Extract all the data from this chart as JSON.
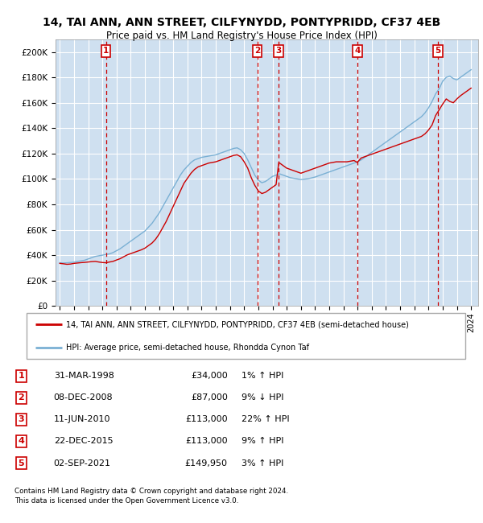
{
  "title1": "14, TAI ANN, ANN STREET, CILFYNYDD, PONTYPRIDD, CF37 4EB",
  "title2": "Price paid vs. HM Land Registry's House Price Index (HPI)",
  "ylabel_ticks": [
    0,
    20000,
    40000,
    60000,
    80000,
    100000,
    120000,
    140000,
    160000,
    180000,
    200000
  ],
  "ylabel_labels": [
    "£0",
    "£20K",
    "£40K",
    "£60K",
    "£80K",
    "£100K",
    "£120K",
    "£140K",
    "£160K",
    "£180K",
    "£200K"
  ],
  "xlim": [
    1994.7,
    2024.5
  ],
  "ylim": [
    0,
    210000
  ],
  "background_color": "#cfe0f0",
  "grid_color": "#ffffff",
  "red_color": "#cc0000",
  "blue_color": "#7ab0d4",
  "transactions": [
    {
      "num": 1,
      "year": 1998.25,
      "price": 34000,
      "date": "31-MAR-1998",
      "amount": "£34,000",
      "pct": "1%",
      "dir": "↑"
    },
    {
      "num": 2,
      "year": 2008.92,
      "price": 87000,
      "date": "08-DEC-2008",
      "amount": "£87,000",
      "pct": "9%",
      "dir": "↓"
    },
    {
      "num": 3,
      "year": 2010.44,
      "price": 113000,
      "date": "11-JUN-2010",
      "amount": "£113,000",
      "pct": "22%",
      "dir": "↑"
    },
    {
      "num": 4,
      "year": 2015.97,
      "price": 113000,
      "date": "22-DEC-2015",
      "amount": "£113,000",
      "pct": "9%",
      "dir": "↑"
    },
    {
      "num": 5,
      "year": 2021.67,
      "price": 149950,
      "date": "02-SEP-2021",
      "amount": "£149,950",
      "pct": "3%",
      "dir": "↑"
    }
  ],
  "legend_property": "14, TAI ANN, ANN STREET, CILFYNYDD, PONTYPRIDD, CF37 4EB (semi-detached house)",
  "legend_hpi": "HPI: Average price, semi-detached house, Rhondda Cynon Taf",
  "footer": "Contains HM Land Registry data © Crown copyright and database right 2024.\nThis data is licensed under the Open Government Licence v3.0.",
  "hpi_red_data": {
    "years": [
      1995.0,
      1995.25,
      1995.5,
      1995.75,
      1996.0,
      1996.25,
      1996.5,
      1996.75,
      1997.0,
      1997.25,
      1997.5,
      1997.75,
      1998.0,
      1998.25,
      1998.5,
      1998.75,
      1999.0,
      1999.25,
      1999.5,
      1999.75,
      2000.0,
      2000.25,
      2000.5,
      2000.75,
      2001.0,
      2001.25,
      2001.5,
      2001.75,
      2002.0,
      2002.25,
      2002.5,
      2002.75,
      2003.0,
      2003.25,
      2003.5,
      2003.75,
      2004.0,
      2004.25,
      2004.5,
      2004.75,
      2005.0,
      2005.25,
      2005.5,
      2005.75,
      2006.0,
      2006.25,
      2006.5,
      2006.75,
      2007.0,
      2007.25,
      2007.5,
      2007.75,
      2008.0,
      2008.25,
      2008.5,
      2008.75,
      2009.0,
      2009.25,
      2009.5,
      2009.75,
      2010.0,
      2010.25,
      2010.44,
      2010.75,
      2011.0,
      2011.25,
      2011.5,
      2011.75,
      2012.0,
      2012.25,
      2012.5,
      2012.75,
      2013.0,
      2013.25,
      2013.5,
      2013.75,
      2014.0,
      2014.25,
      2014.5,
      2014.75,
      2015.0,
      2015.25,
      2015.5,
      2015.75,
      2015.97,
      2016.25,
      2016.5,
      2016.75,
      2017.0,
      2017.25,
      2017.5,
      2017.75,
      2018.0,
      2018.25,
      2018.5,
      2018.75,
      2019.0,
      2019.25,
      2019.5,
      2019.75,
      2020.0,
      2020.25,
      2020.5,
      2020.75,
      2021.0,
      2021.25,
      2021.5,
      2021.67,
      2022.0,
      2022.25,
      2022.5,
      2022.75,
      2023.0,
      2023.25,
      2023.5,
      2023.75,
      2024.0
    ],
    "values": [
      33500,
      33200,
      32800,
      33000,
      33500,
      33800,
      34100,
      34300,
      34600,
      34900,
      35100,
      34600,
      34200,
      34000,
      34600,
      35100,
      36200,
      37200,
      38700,
      40200,
      41200,
      42200,
      43200,
      44200,
      45500,
      47500,
      49500,
      52500,
      56500,
      61500,
      66500,
      72500,
      78500,
      84500,
      90500,
      96500,
      100500,
      104500,
      107500,
      109500,
      110500,
      111500,
      112500,
      113000,
      113500,
      114500,
      115500,
      116500,
      117500,
      118500,
      119000,
      117500,
      113500,
      108500,
      101000,
      95000,
      90500,
      88500,
      89500,
      91500,
      93500,
      95500,
      113000,
      110500,
      108500,
      107500,
      106500,
      105500,
      104500,
      105500,
      106500,
      107500,
      108500,
      109500,
      110500,
      111500,
      112500,
      113000,
      113500,
      113500,
      113500,
      113500,
      114000,
      114500,
      113000,
      116500,
      117500,
      118500,
      119500,
      120500,
      121500,
      122500,
      123500,
      124500,
      125500,
      126500,
      127500,
      128500,
      129500,
      130500,
      131500,
      132500,
      133500,
      135500,
      138500,
      142500,
      149950,
      153000,
      159000,
      163000,
      161000,
      160000,
      163000,
      165500,
      167500,
      169500,
      171500
    ]
  },
  "hpi_blue_data": {
    "years": [
      1995.0,
      1995.25,
      1995.5,
      1995.75,
      1996.0,
      1996.25,
      1996.5,
      1996.75,
      1997.0,
      1997.25,
      1997.5,
      1997.75,
      1998.0,
      1998.25,
      1998.5,
      1998.75,
      1999.0,
      1999.25,
      1999.5,
      1999.75,
      2000.0,
      2000.25,
      2000.5,
      2000.75,
      2001.0,
      2001.25,
      2001.5,
      2001.75,
      2002.0,
      2002.25,
      2002.5,
      2002.75,
      2003.0,
      2003.25,
      2003.5,
      2003.75,
      2004.0,
      2004.25,
      2004.5,
      2004.75,
      2005.0,
      2005.25,
      2005.5,
      2005.75,
      2006.0,
      2006.25,
      2006.5,
      2006.75,
      2007.0,
      2007.25,
      2007.5,
      2007.75,
      2008.0,
      2008.25,
      2008.5,
      2008.75,
      2009.0,
      2009.25,
      2009.5,
      2009.75,
      2010.0,
      2010.25,
      2010.5,
      2010.75,
      2011.0,
      2011.25,
      2011.5,
      2011.75,
      2012.0,
      2012.25,
      2012.5,
      2012.75,
      2013.0,
      2013.25,
      2013.5,
      2013.75,
      2014.0,
      2014.25,
      2014.5,
      2014.75,
      2015.0,
      2015.25,
      2015.5,
      2015.75,
      2016.0,
      2016.25,
      2016.5,
      2016.75,
      2017.0,
      2017.25,
      2017.5,
      2017.75,
      2018.0,
      2018.25,
      2018.5,
      2018.75,
      2019.0,
      2019.25,
      2019.5,
      2019.75,
      2020.0,
      2020.25,
      2020.5,
      2020.75,
      2021.0,
      2021.25,
      2021.5,
      2021.75,
      2022.0,
      2022.25,
      2022.5,
      2022.75,
      2023.0,
      2023.25,
      2023.5,
      2023.75,
      2024.0
    ],
    "values": [
      34000,
      33800,
      34000,
      34200,
      34500,
      35000,
      35500,
      36000,
      37000,
      38000,
      39000,
      39500,
      40000,
      40500,
      41000,
      42000,
      43500,
      45000,
      47000,
      49000,
      51000,
      53000,
      55000,
      57000,
      59000,
      62000,
      65000,
      69000,
      73000,
      78000,
      83000,
      88000,
      93000,
      98000,
      103000,
      107000,
      110000,
      113000,
      115000,
      116000,
      117000,
      117500,
      118000,
      118500,
      119000,
      120000,
      121000,
      122000,
      123000,
      124000,
      124500,
      123000,
      120000,
      115000,
      109000,
      103000,
      99000,
      97000,
      98000,
      100000,
      102000,
      103000,
      104000,
      103000,
      102000,
      101000,
      100500,
      100000,
      99500,
      99800,
      100200,
      100800,
      101500,
      102500,
      103500,
      104500,
      105500,
      106500,
      107500,
      108500,
      109500,
      110500,
      111500,
      112500,
      113500,
      115000,
      117000,
      119000,
      121000,
      123000,
      125000,
      127000,
      129000,
      131000,
      133000,
      135000,
      137000,
      139000,
      141000,
      143000,
      145000,
      147000,
      149000,
      152000,
      156000,
      161000,
      167000,
      171000,
      177000,
      180000,
      181000,
      179000,
      178000,
      180000,
      182000,
      184000,
      186000
    ]
  }
}
